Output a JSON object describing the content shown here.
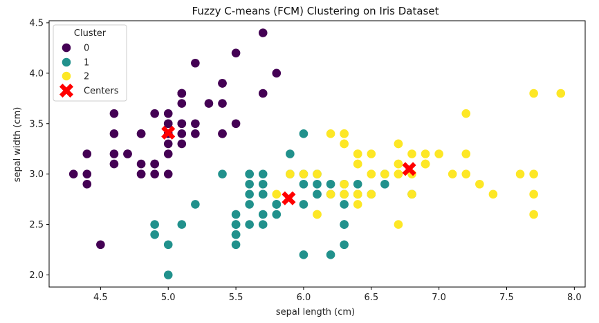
{
  "chart_data": {
    "type": "scatter",
    "title": "Fuzzy C-means (FCM) Clustering on Iris Dataset",
    "xlabel": "sepal length (cm)",
    "ylabel": "sepal width (cm)",
    "xlim": [
      4.12,
      8.08
    ],
    "ylim": [
      1.88,
      4.52
    ],
    "xticks": [
      "4.5",
      "5.0",
      "5.5",
      "6.0",
      "6.5",
      "7.0",
      "7.5",
      "8.0"
    ],
    "xtick_values": [
      4.5,
      5.0,
      5.5,
      6.0,
      6.5,
      7.0,
      7.5,
      8.0
    ],
    "yticks": [
      "2.0",
      "2.5",
      "3.0",
      "3.5",
      "4.0",
      "4.5"
    ],
    "ytick_values": [
      2.0,
      2.5,
      3.0,
      3.5,
      4.0,
      4.5
    ],
    "grid": false,
    "legend": {
      "title": "Cluster",
      "placement": "top-left"
    },
    "series": [
      {
        "name": "0",
        "color": "#440154",
        "points": [
          [
            5.1,
            3.5
          ],
          [
            4.9,
            3.0
          ],
          [
            4.7,
            3.2
          ],
          [
            4.6,
            3.1
          ],
          [
            5.0,
            3.6
          ],
          [
            5.4,
            3.9
          ],
          [
            4.6,
            3.4
          ],
          [
            5.0,
            3.4
          ],
          [
            4.4,
            2.9
          ],
          [
            4.9,
            3.1
          ],
          [
            5.4,
            3.7
          ],
          [
            4.8,
            3.4
          ],
          [
            4.8,
            3.0
          ],
          [
            4.3,
            3.0
          ],
          [
            5.8,
            4.0
          ],
          [
            5.7,
            4.4
          ],
          [
            5.4,
            3.9
          ],
          [
            5.1,
            3.5
          ],
          [
            5.7,
            3.8
          ],
          [
            5.1,
            3.8
          ],
          [
            5.4,
            3.4
          ],
          [
            5.1,
            3.7
          ],
          [
            4.6,
            3.6
          ],
          [
            5.1,
            3.3
          ],
          [
            4.8,
            3.4
          ],
          [
            5.0,
            3.0
          ],
          [
            5.0,
            3.4
          ],
          [
            5.2,
            3.5
          ],
          [
            5.2,
            3.4
          ],
          [
            4.7,
            3.2
          ],
          [
            4.8,
            3.1
          ],
          [
            5.4,
            3.4
          ],
          [
            5.2,
            4.1
          ],
          [
            5.5,
            4.2
          ],
          [
            4.9,
            3.1
          ],
          [
            5.0,
            3.2
          ],
          [
            5.5,
            3.5
          ],
          [
            4.9,
            3.6
          ],
          [
            4.4,
            3.0
          ],
          [
            5.1,
            3.4
          ],
          [
            5.0,
            3.5
          ],
          [
            4.5,
            2.3
          ],
          [
            4.4,
            3.2
          ],
          [
            5.0,
            3.5
          ],
          [
            5.1,
            3.8
          ],
          [
            4.8,
            3.0
          ],
          [
            5.1,
            3.8
          ],
          [
            4.6,
            3.2
          ],
          [
            5.3,
            3.7
          ],
          [
            5.0,
            3.3
          ]
        ]
      },
      {
        "name": "1",
        "color": "#21918c",
        "points": [
          [
            5.5,
            2.3
          ],
          [
            5.7,
            2.8
          ],
          [
            4.9,
            2.4
          ],
          [
            6.6,
            2.9
          ],
          [
            5.2,
            2.7
          ],
          [
            5.0,
            2.0
          ],
          [
            5.9,
            3.0
          ],
          [
            6.0,
            2.2
          ],
          [
            6.1,
            2.9
          ],
          [
            5.6,
            2.9
          ],
          [
            5.6,
            3.0
          ],
          [
            5.8,
            2.7
          ],
          [
            6.2,
            2.2
          ],
          [
            5.6,
            2.5
          ],
          [
            5.9,
            3.2
          ],
          [
            6.1,
            2.8
          ],
          [
            6.3,
            2.5
          ],
          [
            6.4,
            2.9
          ],
          [
            5.7,
            2.6
          ],
          [
            5.5,
            2.4
          ],
          [
            5.5,
            2.4
          ],
          [
            5.8,
            2.7
          ],
          [
            6.0,
            2.7
          ],
          [
            5.4,
            3.0
          ],
          [
            6.0,
            3.4
          ],
          [
            6.3,
            2.3
          ],
          [
            5.6,
            3.0
          ],
          [
            5.5,
            2.5
          ],
          [
            5.5,
            2.6
          ],
          [
            6.1,
            3.0
          ],
          [
            5.8,
            2.6
          ],
          [
            5.0,
            2.3
          ],
          [
            5.6,
            2.7
          ],
          [
            5.7,
            3.0
          ],
          [
            5.7,
            2.9
          ],
          [
            6.2,
            2.9
          ],
          [
            5.1,
            2.5
          ],
          [
            5.7,
            2.8
          ],
          [
            5.8,
            2.7
          ],
          [
            6.0,
            3.0
          ],
          [
            6.3,
            2.8
          ],
          [
            6.1,
            2.8
          ],
          [
            6.6,
            3.0
          ],
          [
            6.8,
            2.8
          ],
          [
            6.0,
            2.9
          ],
          [
            5.7,
            2.5
          ],
          [
            4.9,
            2.5
          ],
          [
            6.5,
            2.8
          ],
          [
            6.3,
            2.7
          ],
          [
            6.2,
            2.8
          ],
          [
            6.3,
            2.9
          ],
          [
            5.6,
            2.8
          ],
          [
            5.5,
            2.5
          ],
          [
            6.4,
            2.8
          ],
          [
            6.3,
            2.5
          ]
        ]
      },
      {
        "name": "2",
        "color": "#fde725",
        "points": [
          [
            7.0,
            3.2
          ],
          [
            6.4,
            3.2
          ],
          [
            6.9,
            3.1
          ],
          [
            6.5,
            2.8
          ],
          [
            6.3,
            3.3
          ],
          [
            6.7,
            3.1
          ],
          [
            6.7,
            3.0
          ],
          [
            6.8,
            2.8
          ],
          [
            6.7,
            3.0
          ],
          [
            6.1,
            2.6
          ],
          [
            6.3,
            3.3
          ],
          [
            7.1,
            3.0
          ],
          [
            6.3,
            2.9
          ],
          [
            6.5,
            3.0
          ],
          [
            7.6,
            3.0
          ],
          [
            7.3,
            2.9
          ],
          [
            6.7,
            2.5
          ],
          [
            7.2,
            3.6
          ],
          [
            6.5,
            3.2
          ],
          [
            6.4,
            2.7
          ],
          [
            6.8,
            3.0
          ],
          [
            6.4,
            3.2
          ],
          [
            7.7,
            3.8
          ],
          [
            7.7,
            2.6
          ],
          [
            6.9,
            3.2
          ],
          [
            7.7,
            2.8
          ],
          [
            6.7,
            3.3
          ],
          [
            7.2,
            3.2
          ],
          [
            6.2,
            2.8
          ],
          [
            6.1,
            3.0
          ],
          [
            6.4,
            2.8
          ],
          [
            7.2,
            3.0
          ],
          [
            7.4,
            2.8
          ],
          [
            7.9,
            3.8
          ],
          [
            6.4,
            2.8
          ],
          [
            6.3,
            2.8
          ],
          [
            6.1,
            2.6
          ],
          [
            7.7,
            3.0
          ],
          [
            6.3,
            3.4
          ],
          [
            6.4,
            3.1
          ],
          [
            6.0,
            3.0
          ],
          [
            6.9,
            3.1
          ],
          [
            6.7,
            3.1
          ],
          [
            6.9,
            3.1
          ],
          [
            5.8,
            2.8
          ],
          [
            6.8,
            3.2
          ],
          [
            6.7,
            3.3
          ],
          [
            6.7,
            3.0
          ],
          [
            6.5,
            3.0
          ],
          [
            6.2,
            3.4
          ],
          [
            5.9,
            3.0
          ],
          [
            6.4,
            3.1
          ],
          [
            6.6,
            3.0
          ],
          [
            6.3,
            3.4
          ]
        ]
      }
    ],
    "centers": {
      "name": "Centers",
      "color": "#ff0000",
      "marker": "X",
      "points": [
        [
          5.0,
          3.41
        ],
        [
          5.89,
          2.76
        ],
        [
          6.78,
          3.05
        ]
      ]
    }
  }
}
